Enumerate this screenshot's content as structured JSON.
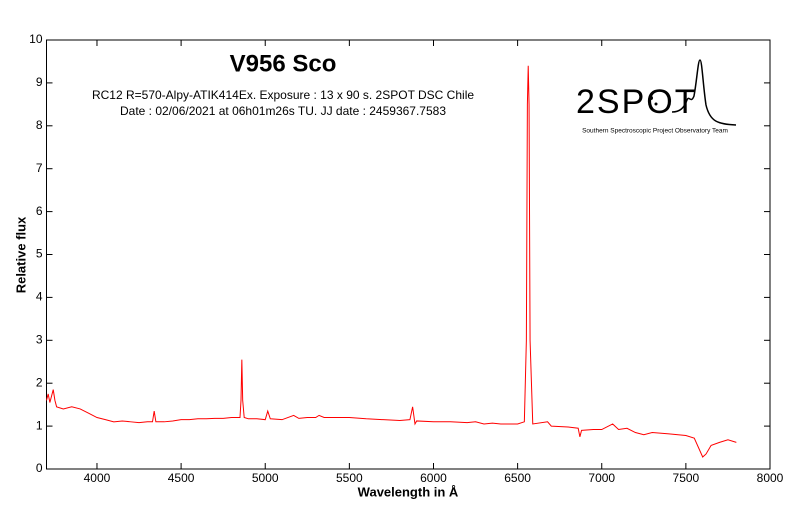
{
  "chart_data": {
    "type": "line",
    "title": "V956 Sco",
    "subtitle": [
      "RC12 R=570-Alpy-ATIK414Ex. Exposure : 13 x 90 s. 2SPOT DSC Chile",
      "Date : 02/06/2021 at 06h01m26s TU. JJ date : 2459367.7583"
    ],
    "xlabel": "Wavelength in Å",
    "ylabel": "Relative flux",
    "logo": {
      "name": "2SPOT",
      "caption": "Southern Spectroscopic Project Observatory Team"
    },
    "xlim": [
      3700,
      8000
    ],
    "ylim": [
      0,
      10
    ],
    "xticks": [
      4000,
      4500,
      5000,
      5500,
      6000,
      6500,
      7000,
      7500,
      8000
    ],
    "yticks": [
      0,
      1,
      2,
      3,
      4,
      5,
      6,
      7,
      8,
      9,
      10
    ],
    "series": [
      {
        "color": "#ff0000",
        "x": [
          3700,
          3710,
          3720,
          3740,
          3750,
          3760,
          3800,
          3850,
          3900,
          3950,
          4000,
          4050,
          4100,
          4150,
          4200,
          4250,
          4300,
          4330,
          4340,
          4350,
          4400,
          4450,
          4500,
          4550,
          4600,
          4650,
          4700,
          4750,
          4800,
          4850,
          4856,
          4861,
          4866,
          4875,
          4900,
          4950,
          5000,
          5015,
          5030,
          5100,
          5169,
          5200,
          5250,
          5300,
          5320,
          5350,
          5400,
          5500,
          5600,
          5700,
          5800,
          5860,
          5876,
          5890,
          5900,
          6000,
          6100,
          6200,
          6250,
          6300,
          6350,
          6400,
          6450,
          6500,
          6540,
          6552,
          6558,
          6563,
          6568,
          6574,
          6590,
          6678,
          6700,
          6800,
          6860,
          6870,
          6880,
          6950,
          7000,
          7065,
          7100,
          7150,
          7200,
          7250,
          7300,
          7400,
          7500,
          7550,
          7600,
          7620,
          7650,
          7700,
          7750,
          7800
        ],
        "values": [
          1.6,
          1.75,
          1.55,
          1.85,
          1.6,
          1.45,
          1.4,
          1.45,
          1.4,
          1.3,
          1.2,
          1.15,
          1.1,
          1.12,
          1.1,
          1.08,
          1.1,
          1.1,
          1.35,
          1.1,
          1.1,
          1.12,
          1.15,
          1.15,
          1.17,
          1.17,
          1.18,
          1.18,
          1.2,
          1.2,
          1.6,
          2.55,
          1.6,
          1.2,
          1.17,
          1.17,
          1.15,
          1.35,
          1.17,
          1.15,
          1.25,
          1.18,
          1.2,
          1.2,
          1.25,
          1.2,
          1.2,
          1.2,
          1.17,
          1.15,
          1.13,
          1.15,
          1.45,
          1.05,
          1.12,
          1.1,
          1.1,
          1.08,
          1.1,
          1.05,
          1.07,
          1.05,
          1.05,
          1.05,
          1.1,
          3,
          8.5,
          9.4,
          8.5,
          3,
          1.05,
          1.1,
          1.0,
          0.98,
          0.95,
          0.75,
          0.9,
          0.92,
          0.92,
          1.05,
          0.92,
          0.95,
          0.85,
          0.8,
          0.85,
          0.82,
          0.78,
          0.72,
          0.28,
          0.35,
          0.55,
          0.62,
          0.68,
          0.62
        ]
      }
    ]
  }
}
